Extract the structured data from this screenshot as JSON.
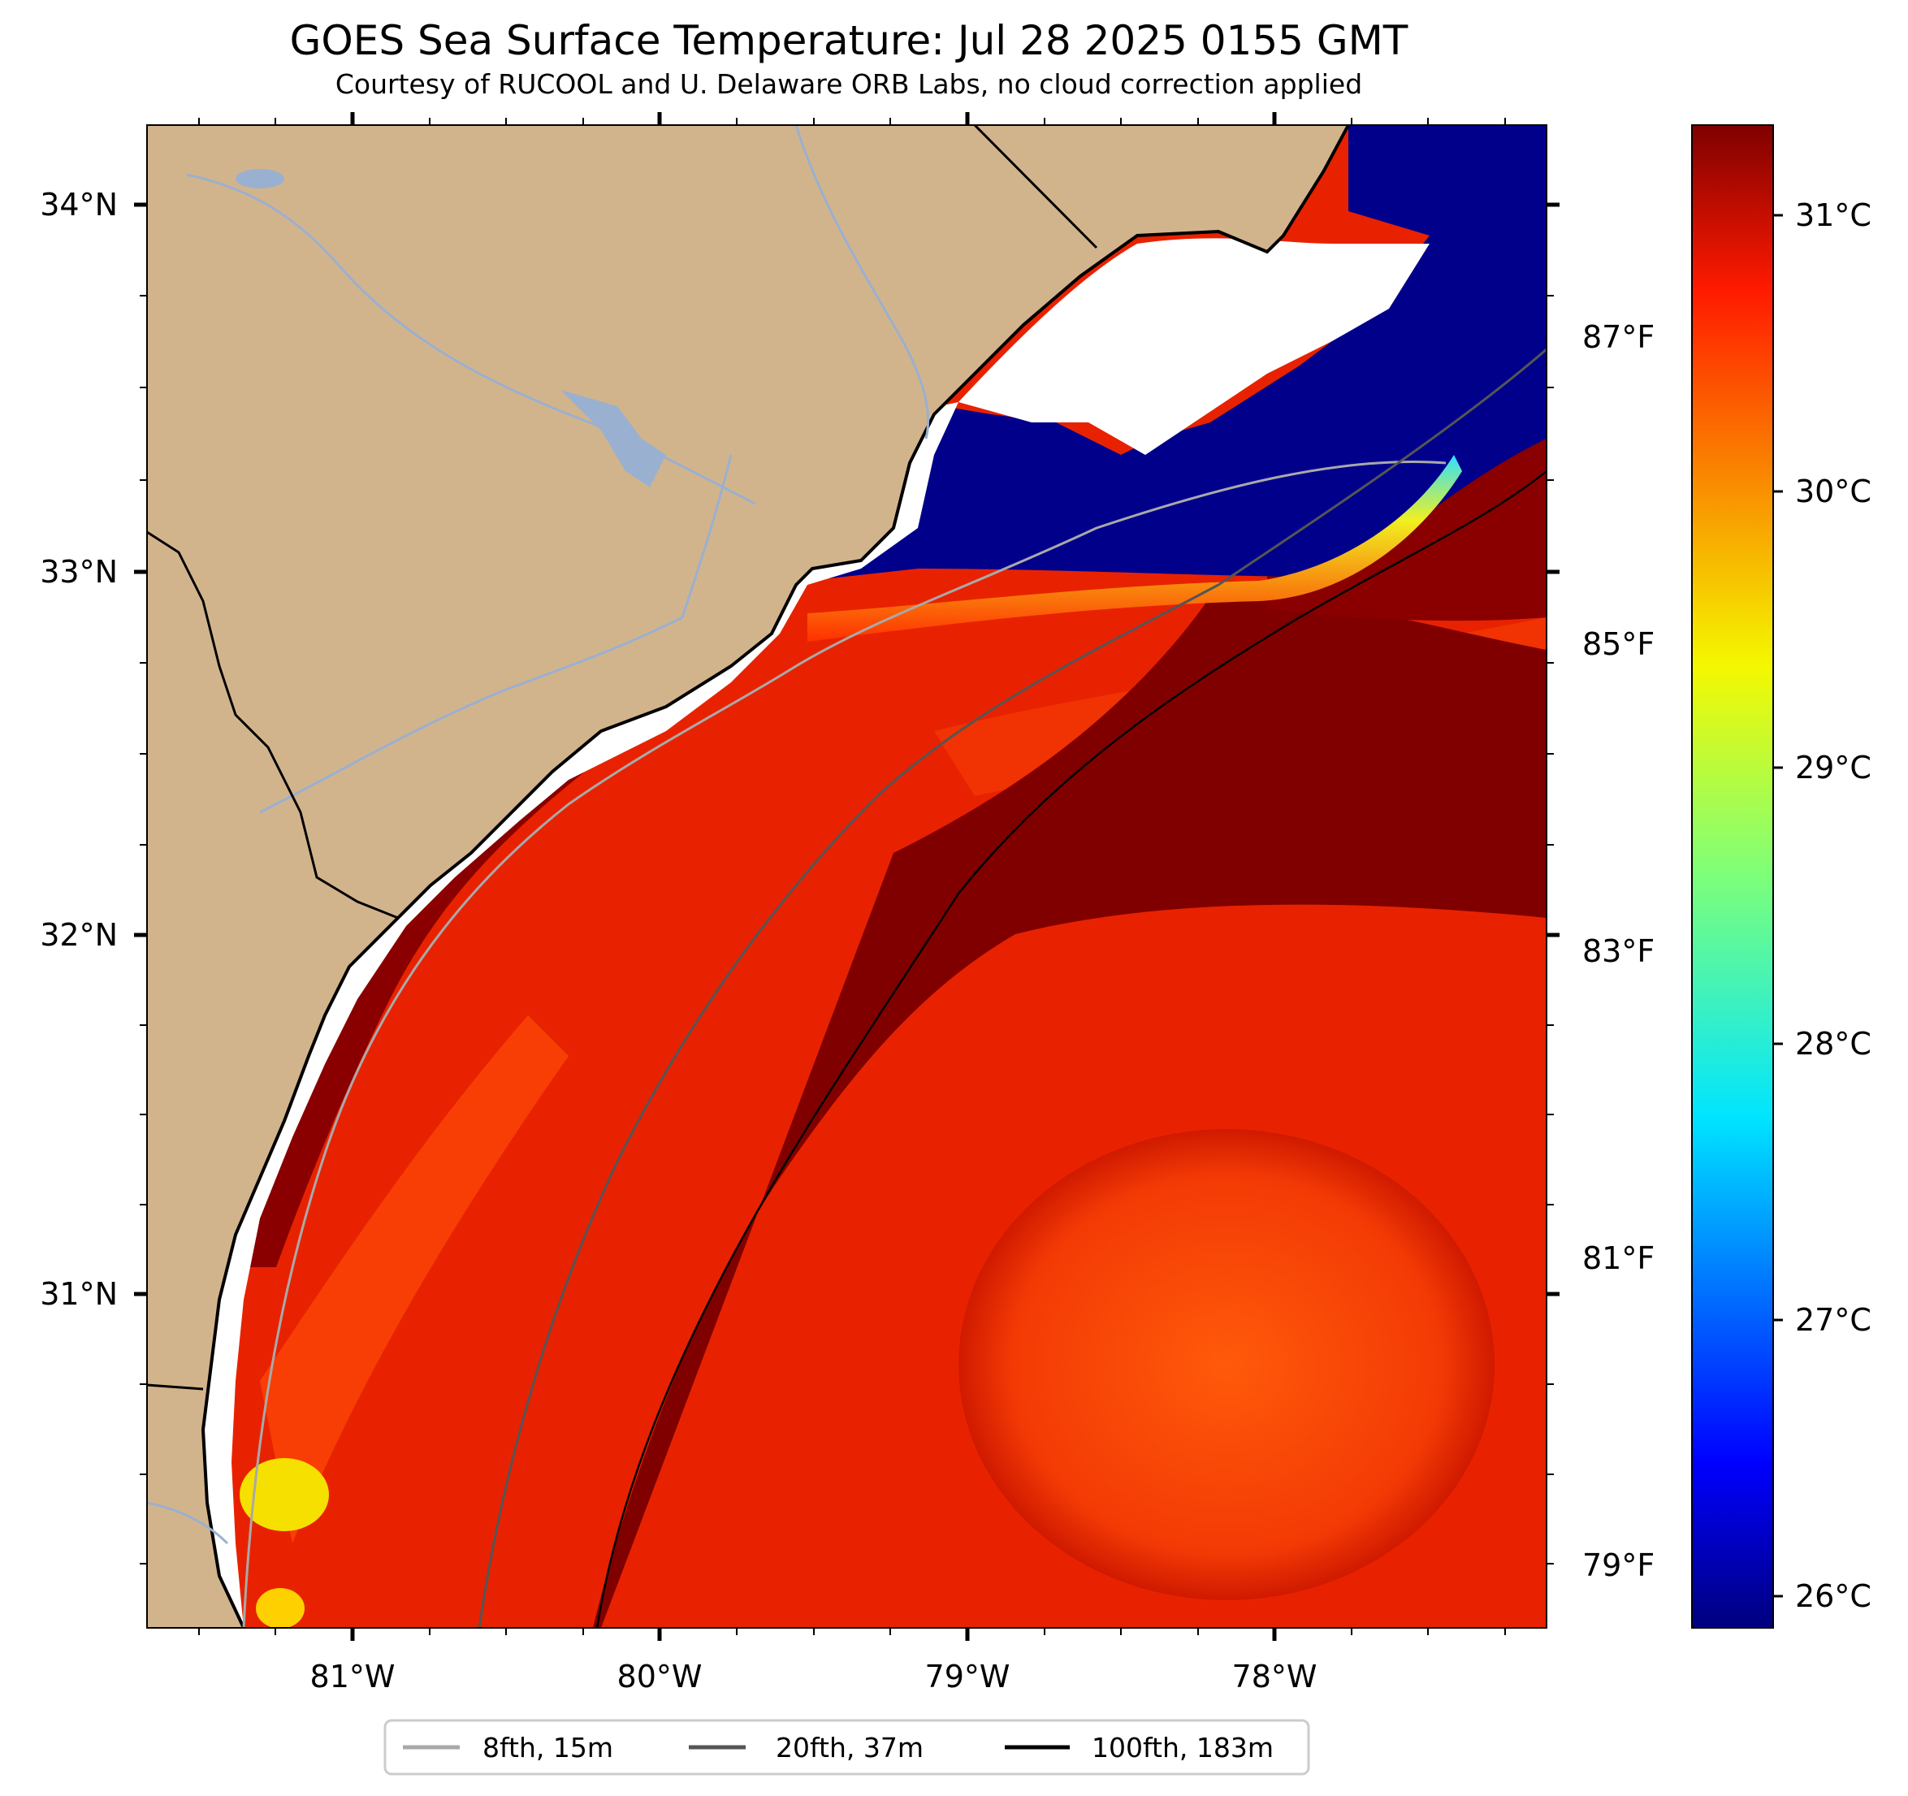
{
  "title": "GOES Sea Surface Temperature: Jul 28 2025 0155 GMT",
  "subtitle": "Courtesy of RUCOOL and U. Delaware ORB Labs, no cloud correction applied",
  "map": {
    "lon_range": [
      -81.67,
      -77.12
    ],
    "lat_range": [
      30.09,
      34.22
    ],
    "x_ticks": [
      "81°W",
      "80°W",
      "79°W",
      "78°W"
    ],
    "y_ticks": [
      "34°N",
      "33°N",
      "32°N",
      "31°N"
    ],
    "land_color": "#d2b48c",
    "river_color": "#9ab0d0",
    "no_data_color": "#ffffff"
  },
  "colorbar": {
    "colormap": "jet",
    "celsius_ticks": [
      "31°C",
      "30°C",
      "29°C",
      "28°C",
      "27°C",
      "26°C"
    ],
    "fahrenheit_ticks": [
      "87°F",
      "85°F",
      "83°F",
      "81°F",
      "79°F"
    ]
  },
  "legend": {
    "items": [
      {
        "label": "8fth, 15m",
        "color": "#a9a9a9"
      },
      {
        "label": "20fth, 37m",
        "color": "#555555"
      },
      {
        "label": "100fth, 183m",
        "color": "#000000"
      }
    ]
  }
}
